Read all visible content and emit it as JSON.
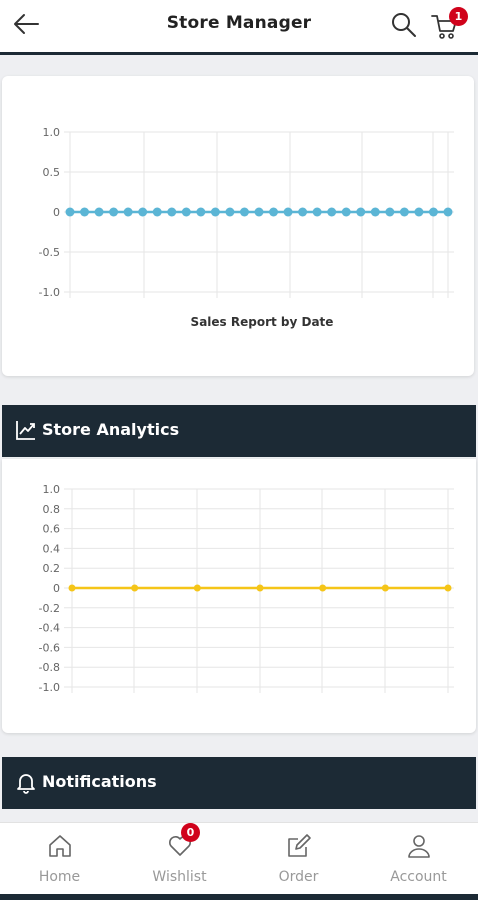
{
  "header": {
    "title": "Store Manager",
    "cart_count": "1"
  },
  "sales_chart": {
    "title": "Sales Report by Date"
  },
  "analytics": {
    "title": "Store Analytics"
  },
  "notifications": {
    "title": "Notifications"
  },
  "nav": {
    "items": [
      {
        "label": "Home",
        "icon": "home-icon"
      },
      {
        "label": "Wishlist",
        "icon": "heart-icon",
        "badge": "0"
      },
      {
        "label": "Order",
        "icon": "edit-icon"
      },
      {
        "label": "Account",
        "icon": "user-icon"
      }
    ]
  },
  "colors": {
    "header_dark": "#1c2a35",
    "badge_red": "#d0021b",
    "sales_line": "#5bb5d5",
    "analytics_line": "#f5c518"
  },
  "chart_data": [
    {
      "type": "line",
      "title": "Sales Report by Date",
      "xlabel": "",
      "ylabel": "",
      "ylim": [
        -1.0,
        1.0
      ],
      "yticks": [
        "1.0",
        "0.5",
        "0",
        "-0.5",
        "-1.0"
      ],
      "series": [
        {
          "values": [
            0,
            0,
            0,
            0,
            0,
            0,
            0,
            0,
            0,
            0,
            0,
            0,
            0,
            0,
            0,
            0,
            0,
            0,
            0,
            0,
            0,
            0,
            0,
            0,
            0,
            0,
            0
          ]
        }
      ],
      "grid": true
    },
    {
      "type": "line",
      "title": "",
      "xlabel": "",
      "ylabel": "",
      "ylim": [
        -1.0,
        1.0
      ],
      "yticks": [
        "1.0",
        "0.8",
        "0.6",
        "0.4",
        "0.2",
        "0",
        "-0.2",
        "-0.4",
        "-0.6",
        "-0.8",
        "-1.0"
      ],
      "series": [
        {
          "values": [
            0,
            0,
            0,
            0,
            0,
            0,
            0
          ]
        }
      ],
      "grid": true
    }
  ]
}
